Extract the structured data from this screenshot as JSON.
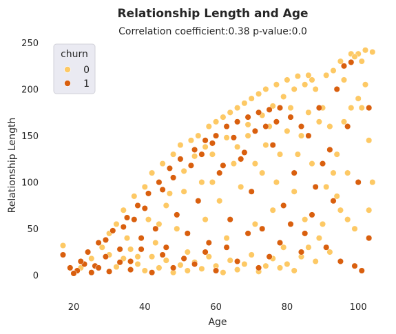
{
  "chart_data": {
    "type": "scatter",
    "title": "Relationship Length and Age",
    "subtitle": "Correlation coefficient:0.38 p-value:0.0",
    "xlabel": "Age",
    "ylabel": "Relationship Length",
    "xlim": [
      14,
      105
    ],
    "ylim": [
      -15,
      250
    ],
    "xticks": [
      20,
      40,
      60,
      80,
      100
    ],
    "yticks": [
      0,
      50,
      100,
      150,
      200,
      250
    ],
    "grid": false,
    "legend": {
      "title": "churn",
      "placement": "top-left",
      "entries": [
        {
          "label": "0",
          "color": "#fdc965"
        },
        {
          "label": "1",
          "color": "#d95f0e"
        }
      ]
    },
    "series": [
      {
        "name": "0",
        "color": "#fdc965",
        "points": [
          [
            17,
            32
          ],
          [
            22,
            8
          ],
          [
            25,
            18
          ],
          [
            28,
            30
          ],
          [
            30,
            45
          ],
          [
            32,
            55
          ],
          [
            34,
            70
          ],
          [
            35,
            40
          ],
          [
            37,
            85
          ],
          [
            38,
            20
          ],
          [
            40,
            95
          ],
          [
            41,
            60
          ],
          [
            42,
            110
          ],
          [
            43,
            35
          ],
          [
            45,
            120
          ],
          [
            46,
            75
          ],
          [
            48,
            130
          ],
          [
            49,
            50
          ],
          [
            50,
            140
          ],
          [
            51,
            90
          ],
          [
            52,
            25
          ],
          [
            53,
            145
          ],
          [
            55,
            150
          ],
          [
            56,
            100
          ],
          [
            57,
            60
          ],
          [
            58,
            160
          ],
          [
            59,
            130
          ],
          [
            60,
            165
          ],
          [
            61,
            80
          ],
          [
            62,
            170
          ],
          [
            63,
            40
          ],
          [
            64,
            175
          ],
          [
            65,
            120
          ],
          [
            66,
            180
          ],
          [
            67,
            95
          ],
          [
            68,
            185
          ],
          [
            69,
            150
          ],
          [
            70,
            190
          ],
          [
            71,
            55
          ],
          [
            72,
            195
          ],
          [
            73,
            110
          ],
          [
            74,
            200
          ],
          [
            75,
            160
          ],
          [
            76,
            70
          ],
          [
            77,
            205
          ],
          [
            78,
            130
          ],
          [
            79,
            30
          ],
          [
            80,
            210
          ],
          [
            81,
            180
          ],
          [
            82,
            90
          ],
          [
            83,
            214
          ],
          [
            84,
            150
          ],
          [
            85,
            60
          ],
          [
            86,
            215
          ],
          [
            87,
            120
          ],
          [
            88,
            200
          ],
          [
            89,
            40
          ],
          [
            90,
            180
          ],
          [
            91,
            95
          ],
          [
            92,
            160
          ],
          [
            93,
            220
          ],
          [
            94,
            130
          ],
          [
            95,
            70
          ],
          [
            96,
            210
          ],
          [
            97,
            110
          ],
          [
            98,
            238
          ],
          [
            99,
            50
          ],
          [
            100,
            238
          ],
          [
            101,
            230
          ],
          [
            102,
            242
          ],
          [
            102,
            205
          ],
          [
            103,
            70
          ],
          [
            104,
            100
          ],
          [
            103,
            145
          ],
          [
            100,
            190
          ],
          [
            98,
            180
          ],
          [
            96,
            165
          ],
          [
            94,
            85
          ],
          [
            92,
            25
          ],
          [
            90,
            55
          ],
          [
            88,
            15
          ],
          [
            86,
            30
          ],
          [
            84,
            20
          ],
          [
            82,
            5
          ],
          [
            80,
            12
          ],
          [
            78,
            8
          ],
          [
            76,
            18
          ],
          [
            74,
            10
          ],
          [
            72,
            4
          ],
          [
            70,
            22
          ],
          [
            68,
            12
          ],
          [
            66,
            6
          ],
          [
            64,
            16
          ],
          [
            62,
            3
          ],
          [
            60,
            10
          ],
          [
            58,
            20
          ],
          [
            56,
            7
          ],
          [
            54,
            14
          ],
          [
            52,
            5
          ],
          [
            50,
            11
          ],
          [
            48,
            3
          ],
          [
            46,
            16
          ],
          [
            44,
            8
          ],
          [
            42,
            20
          ],
          [
            40,
            5
          ],
          [
            38,
            12
          ],
          [
            36,
            28
          ],
          [
            34,
            18
          ],
          [
            32,
            9
          ],
          [
            30,
            22
          ],
          [
            44,
            55
          ],
          [
            47,
            88
          ],
          [
            51,
            112
          ],
          [
            54,
            128
          ],
          [
            57,
            138
          ],
          [
            59,
            100
          ],
          [
            63,
            148
          ],
          [
            66,
            138
          ],
          [
            69,
            162
          ],
          [
            73,
            172
          ],
          [
            76,
            182
          ],
          [
            79,
            192
          ],
          [
            82,
            200
          ],
          [
            85,
            205
          ],
          [
            87,
            210
          ],
          [
            91,
            215
          ],
          [
            95,
            230
          ],
          [
            99,
            235
          ],
          [
            101,
            180
          ],
          [
            103,
            40
          ],
          [
            104,
            240
          ],
          [
            97,
            60
          ],
          [
            93,
            110
          ],
          [
            89,
            165
          ],
          [
            86,
            175
          ],
          [
            83,
            130
          ],
          [
            80,
            155
          ],
          [
            77,
            100
          ],
          [
            74,
            140
          ],
          [
            71,
            120
          ]
        ]
      },
      {
        "name": "1",
        "color": "#d95f0e",
        "points": [
          [
            17,
            22
          ],
          [
            19,
            8
          ],
          [
            21,
            5
          ],
          [
            23,
            12
          ],
          [
            24,
            25
          ],
          [
            26,
            10
          ],
          [
            27,
            35
          ],
          [
            29,
            20
          ],
          [
            31,
            48
          ],
          [
            33,
            28
          ],
          [
            35,
            62
          ],
          [
            36,
            15
          ],
          [
            38,
            75
          ],
          [
            39,
            40
          ],
          [
            41,
            88
          ],
          [
            43,
            50
          ],
          [
            44,
            100
          ],
          [
            46,
            30
          ],
          [
            47,
            115
          ],
          [
            49,
            65
          ],
          [
            50,
            125
          ],
          [
            52,
            45
          ],
          [
            54,
            135
          ],
          [
            55,
            80
          ],
          [
            57,
            145
          ],
          [
            58,
            35
          ],
          [
            60,
            150
          ],
          [
            61,
            110
          ],
          [
            63,
            160
          ],
          [
            64,
            60
          ],
          [
            66,
            165
          ],
          [
            67,
            125
          ],
          [
            69,
            170
          ],
          [
            70,
            90
          ],
          [
            72,
            175
          ],
          [
            73,
            50
          ],
          [
            75,
            178
          ],
          [
            76,
            140
          ],
          [
            78,
            180
          ],
          [
            79,
            75
          ],
          [
            81,
            170
          ],
          [
            82,
            110
          ],
          [
            84,
            160
          ],
          [
            85,
            45
          ],
          [
            86,
            150
          ],
          [
            88,
            95
          ],
          [
            89,
            180
          ],
          [
            91,
            30
          ],
          [
            92,
            135
          ],
          [
            94,
            200
          ],
          [
            95,
            15
          ],
          [
            96,
            225
          ],
          [
            97,
            160
          ],
          [
            98,
            229
          ],
          [
            99,
            10
          ],
          [
            100,
            100
          ],
          [
            101,
            5
          ],
          [
            103,
            40
          ],
          [
            103,
            180
          ],
          [
            93,
            80
          ],
          [
            90,
            120
          ],
          [
            87,
            65
          ],
          [
            84,
            25
          ],
          [
            81,
            55
          ],
          [
            78,
            35
          ],
          [
            75,
            20
          ],
          [
            72,
            8
          ],
          [
            69,
            45
          ],
          [
            66,
            15
          ],
          [
            63,
            30
          ],
          [
            60,
            5
          ],
          [
            57,
            25
          ],
          [
            54,
            12
          ],
          [
            51,
            18
          ],
          [
            48,
            8
          ],
          [
            45,
            22
          ],
          [
            42,
            3
          ],
          [
            39,
            28
          ],
          [
            36,
            6
          ],
          [
            33,
            14
          ],
          [
            30,
            4
          ],
          [
            27,
            8
          ],
          [
            25,
            3
          ],
          [
            22,
            15
          ],
          [
            20,
            2
          ],
          [
            29,
            38
          ],
          [
            34,
            52
          ],
          [
            37,
            60
          ],
          [
            40,
            72
          ],
          [
            45,
            92
          ],
          [
            48,
            105
          ],
          [
            53,
            118
          ],
          [
            56,
            130
          ],
          [
            59,
            142
          ],
          [
            62,
            118
          ],
          [
            65,
            148
          ],
          [
            68,
            132
          ],
          [
            71,
            155
          ],
          [
            74,
            160
          ],
          [
            77,
            165
          ]
        ]
      }
    ]
  }
}
